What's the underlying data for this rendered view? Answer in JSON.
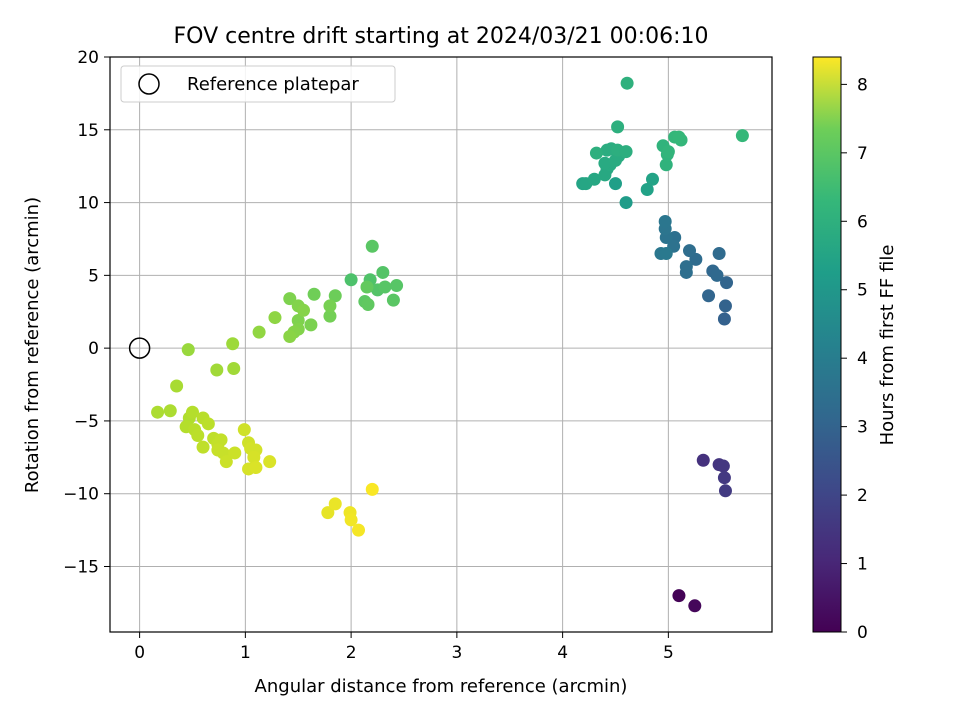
{
  "chart_data": {
    "type": "scatter",
    "title": "FOV centre drift starting at 2024/03/21 00:06:10",
    "xlabel": "Angular distance from reference (arcmin)",
    "ylabel": "Rotation from reference (arcmin)",
    "xlim": [
      -0.28,
      5.98
    ],
    "ylim": [
      -19.5,
      20
    ],
    "xticks": [
      0,
      1,
      2,
      3,
      4,
      5
    ],
    "yticks": [
      -15,
      -10,
      -5,
      0,
      5,
      10,
      15,
      20
    ],
    "grid": true,
    "legend": {
      "position": "top-left",
      "entries": [
        "Reference platepar"
      ]
    },
    "reference_point": {
      "x": 0,
      "y": 0
    },
    "colorbar": {
      "label": "Hours from first FF file",
      "range": [
        0,
        8.4
      ],
      "ticks": [
        0,
        1,
        2,
        3,
        4,
        5,
        6,
        7,
        8
      ],
      "colormap": "viridis"
    },
    "points": [
      [
        5.1,
        -17.0,
        0.05
      ],
      [
        5.25,
        -17.7,
        0.15
      ],
      [
        5.33,
        -7.7,
        1.2
      ],
      [
        5.48,
        -8.0,
        1.3
      ],
      [
        5.52,
        -8.1,
        1.35
      ],
      [
        5.53,
        -8.9,
        1.4
      ],
      [
        5.54,
        -9.8,
        1.45
      ],
      [
        5.53,
        2.0,
        2.6
      ],
      [
        5.54,
        2.9,
        2.65
      ],
      [
        5.55,
        4.5,
        2.7
      ],
      [
        5.38,
        3.6,
        2.75
      ],
      [
        5.42,
        5.3,
        2.8
      ],
      [
        5.46,
        5.0,
        2.85
      ],
      [
        5.48,
        6.5,
        2.9
      ],
      [
        5.26,
        6.1,
        2.95
      ],
      [
        5.2,
        6.7,
        3.0
      ],
      [
        5.17,
        5.6,
        3.05
      ],
      [
        5.17,
        5.2,
        3.05
      ],
      [
        5.06,
        7.6,
        3.1
      ],
      [
        5.05,
        7.0,
        3.15
      ],
      [
        4.98,
        7.6,
        3.2
      ],
      [
        4.97,
        8.2,
        3.25
      ],
      [
        4.97,
        8.7,
        3.3
      ],
      [
        4.93,
        6.5,
        3.35
      ],
      [
        4.98,
        6.5,
        3.4
      ],
      [
        4.6,
        10.0,
        4.6
      ],
      [
        4.8,
        10.9,
        4.8
      ],
      [
        4.85,
        11.6,
        4.85
      ],
      [
        4.5,
        11.3,
        4.7
      ],
      [
        4.19,
        11.3,
        4.9
      ],
      [
        4.22,
        11.3,
        4.95
      ],
      [
        4.3,
        11.6,
        5.0
      ],
      [
        4.4,
        11.9,
        5.05
      ],
      [
        4.42,
        12.3,
        5.05
      ],
      [
        4.45,
        12.6,
        5.1
      ],
      [
        4.4,
        12.7,
        5.1
      ],
      [
        4.5,
        12.9,
        5.15
      ],
      [
        4.53,
        13.2,
        5.15
      ],
      [
        4.46,
        13.7,
        5.2
      ],
      [
        4.42,
        13.6,
        5.2
      ],
      [
        4.52,
        13.6,
        5.25
      ],
      [
        4.6,
        13.5,
        5.25
      ],
      [
        4.32,
        13.4,
        5.3
      ],
      [
        4.52,
        15.2,
        5.3
      ],
      [
        4.61,
        18.2,
        5.35
      ],
      [
        4.98,
        12.6,
        5.4
      ],
      [
        4.99,
        13.3,
        5.45
      ],
      [
        4.95,
        13.9,
        5.45
      ],
      [
        5.0,
        13.5,
        5.5
      ],
      [
        5.06,
        14.5,
        5.55
      ],
      [
        5.12,
        14.3,
        5.55
      ],
      [
        5.1,
        14.5,
        5.6
      ],
      [
        5.7,
        14.6,
        5.6
      ],
      [
        2.0,
        4.7,
        6.0
      ],
      [
        2.18,
        4.7,
        6.05
      ],
      [
        2.25,
        4.0,
        6.1
      ],
      [
        2.3,
        5.2,
        6.1
      ],
      [
        2.32,
        4.2,
        6.15
      ],
      [
        2.43,
        4.3,
        6.15
      ],
      [
        2.4,
        3.3,
        6.2
      ],
      [
        2.13,
        3.2,
        6.25
      ],
      [
        2.16,
        3.0,
        6.3
      ],
      [
        2.15,
        4.2,
        6.35
      ],
      [
        2.2,
        7.0,
        6.2
      ],
      [
        1.85,
        3.6,
        6.5
      ],
      [
        1.65,
        3.7,
        6.55
      ],
      [
        1.8,
        2.2,
        6.6
      ],
      [
        1.8,
        2.9,
        6.65
      ],
      [
        1.62,
        1.6,
        6.7
      ],
      [
        1.5,
        1.9,
        6.75
      ],
      [
        1.5,
        1.3,
        6.8
      ],
      [
        1.46,
        1.1,
        6.85
      ],
      [
        1.42,
        0.8,
        6.9
      ],
      [
        1.42,
        3.4,
        6.75
      ],
      [
        1.5,
        2.9,
        6.8
      ],
      [
        1.55,
        2.6,
        6.85
      ],
      [
        1.28,
        2.1,
        6.95
      ],
      [
        1.13,
        1.1,
        7.0
      ],
      [
        0.46,
        -0.1,
        7.1
      ],
      [
        0.88,
        0.3,
        7.15
      ],
      [
        0.73,
        -1.5,
        7.2
      ],
      [
        0.89,
        -1.4,
        7.2
      ],
      [
        0.35,
        -2.6,
        7.3
      ],
      [
        0.17,
        -4.4,
        7.35
      ],
      [
        0.29,
        -4.3,
        7.35
      ],
      [
        0.47,
        -4.8,
        7.4
      ],
      [
        0.5,
        -4.4,
        7.45
      ],
      [
        0.44,
        -5.4,
        7.45
      ],
      [
        0.52,
        -5.6,
        7.5
      ],
      [
        0.6,
        -4.8,
        7.5
      ],
      [
        0.65,
        -5.2,
        7.55
      ],
      [
        0.55,
        -6.0,
        7.55
      ],
      [
        0.6,
        -6.8,
        7.6
      ],
      [
        0.7,
        -6.2,
        7.6
      ],
      [
        0.74,
        -6.6,
        7.65
      ],
      [
        0.77,
        -6.3,
        7.65
      ],
      [
        0.74,
        -7.0,
        7.7
      ],
      [
        0.79,
        -7.2,
        7.7
      ],
      [
        0.82,
        -7.8,
        7.75
      ],
      [
        0.9,
        -7.2,
        7.75
      ],
      [
        0.99,
        -5.6,
        7.8
      ],
      [
        1.03,
        -6.5,
        7.8
      ],
      [
        1.05,
        -6.9,
        7.85
      ],
      [
        1.1,
        -7.0,
        7.85
      ],
      [
        1.08,
        -7.5,
        7.9
      ],
      [
        1.03,
        -8.3,
        7.9
      ],
      [
        1.1,
        -8.2,
        7.95
      ],
      [
        1.23,
        -7.8,
        7.95
      ],
      [
        1.78,
        -11.3,
        8.1
      ],
      [
        1.85,
        -10.7,
        8.15
      ],
      [
        1.99,
        -11.3,
        8.2
      ],
      [
        2.0,
        -11.8,
        8.25
      ],
      [
        2.07,
        -12.5,
        8.3
      ],
      [
        2.2,
        -9.7,
        8.35
      ]
    ]
  }
}
